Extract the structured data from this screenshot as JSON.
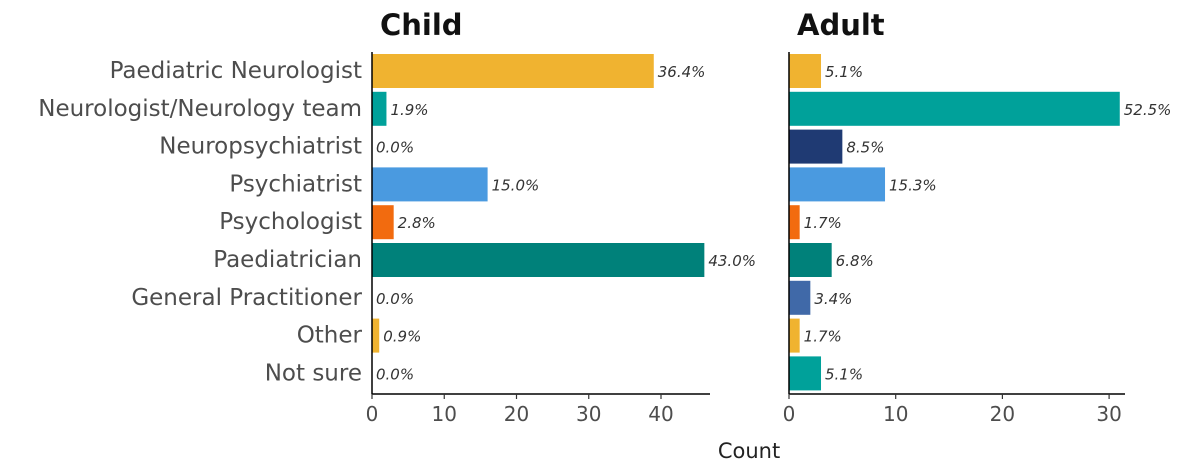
{
  "chart_data": {
    "type": "bar",
    "orientation": "horizontal",
    "xlabel": "Count",
    "categories": [
      "Paediatric Neurologist",
      "Neurologist/Neurology team",
      "Neuropsychiatrist",
      "Psychiatrist",
      "Psychologist",
      "Paediatrician",
      "General Practitioner",
      "Other",
      "Not sure"
    ],
    "panels": [
      {
        "title": "Child",
        "xlim": [
          0,
          46
        ],
        "xticks": [
          0,
          10,
          20,
          30,
          40
        ],
        "values": [
          39,
          2,
          0,
          16,
          3,
          46,
          0,
          1,
          0
        ],
        "labels": [
          "36.4%",
          "1.9%",
          "0.0%",
          "15.0%",
          "2.8%",
          "43.0%",
          "0.0%",
          "0.9%",
          "0.0%"
        ],
        "colors": [
          "#F0B330",
          "#00A19A",
          "#1F3A73",
          "#4A9AE0",
          "#F26B0F",
          "#00817A",
          "#4069A8",
          "#F0B330",
          "#00A19A"
        ]
      },
      {
        "title": "Adult",
        "xlim": [
          0,
          31
        ],
        "xticks": [
          0,
          10,
          20,
          30
        ],
        "values": [
          3,
          31,
          5,
          9,
          1,
          4,
          2,
          1,
          3
        ],
        "labels": [
          "5.1%",
          "52.5%",
          "8.5%",
          "15.3%",
          "1.7%",
          "6.8%",
          "3.4%",
          "1.7%",
          "5.1%"
        ],
        "colors": [
          "#F0B330",
          "#00A19A",
          "#1F3A73",
          "#4A9AE0",
          "#F26B0F",
          "#00817A",
          "#4069A8",
          "#F0B330",
          "#00A19A"
        ]
      }
    ]
  }
}
